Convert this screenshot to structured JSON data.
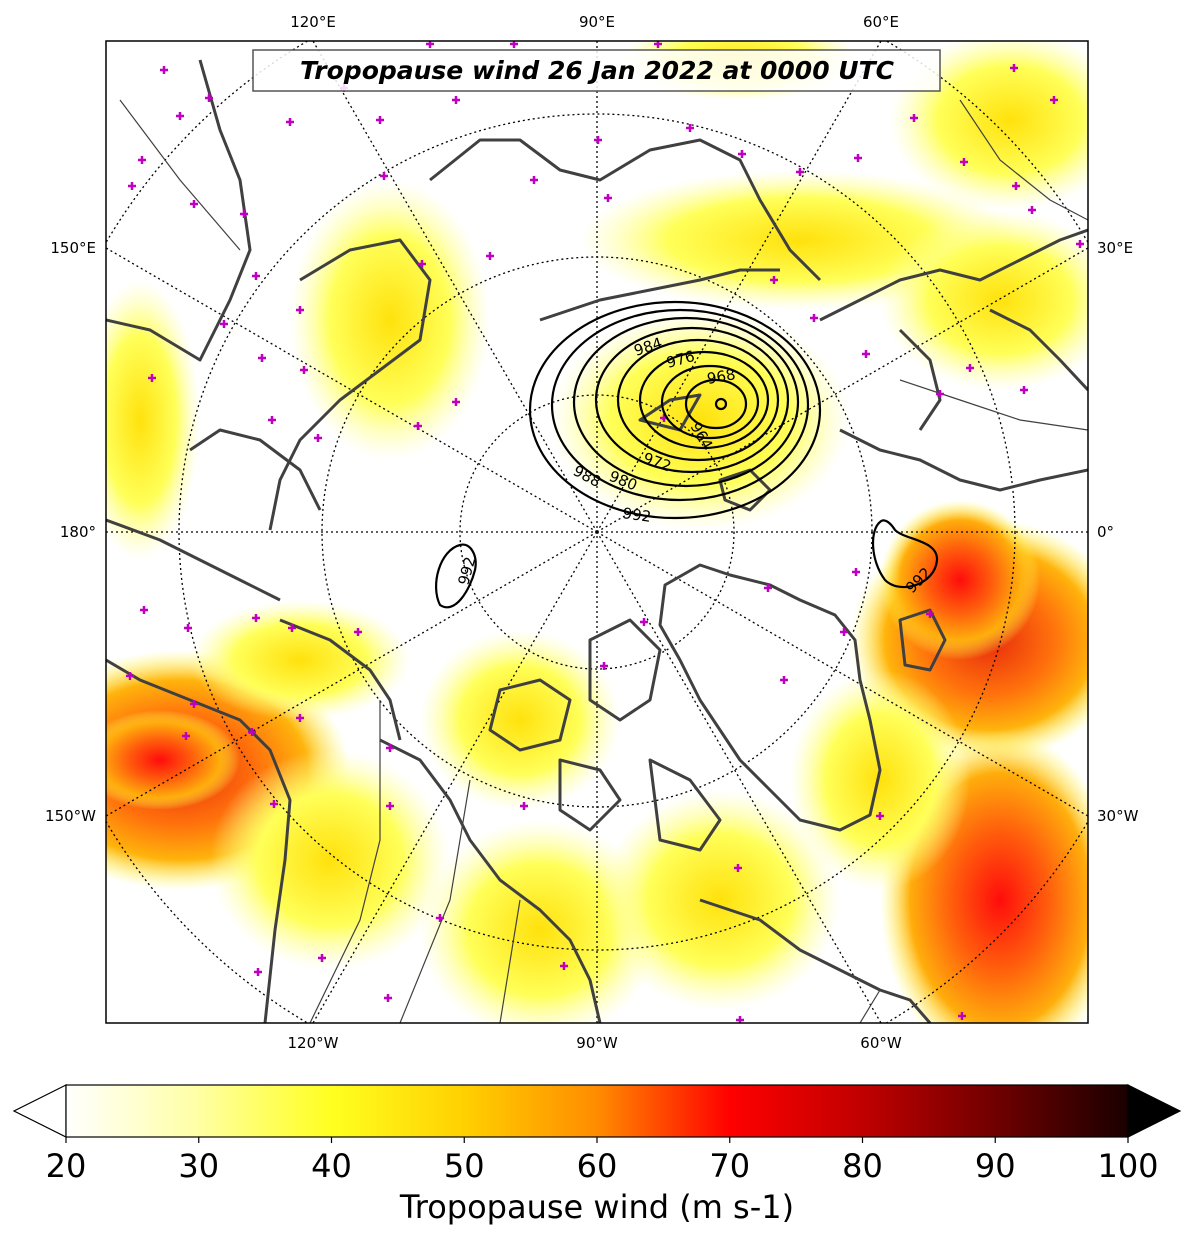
{
  "title": "Tropopause wind 26 Jan 2022 at 0000 UTC",
  "longitude_labels": {
    "top": [
      "120°E",
      "90°E",
      "60°E"
    ],
    "bottom": [
      "120°W",
      "90°W",
      "60°W"
    ],
    "left": [
      "150°E",
      "180°",
      "150°W"
    ],
    "right": [
      "30°E",
      "0°",
      "30°W"
    ]
  },
  "colorbar": {
    "label": "Tropopause wind (m s-1)",
    "ticks": [
      "20",
      "30",
      "40",
      "50",
      "60",
      "70",
      "80",
      "90",
      "100"
    ],
    "min": 20,
    "max": 100,
    "extend": "both",
    "colormap": "hot_r",
    "colors": [
      "#ffffff",
      "#ffff99",
      "#ffff00",
      "#ffd000",
      "#ff8c00",
      "#ff0000",
      "#c00000",
      "#700000",
      "#1a0000"
    ]
  },
  "pressure_contours": {
    "unit": "hPa",
    "labels": [
      "984",
      "976",
      "968",
      "964",
      "972",
      "980",
      "988",
      "992",
      "992",
      "992"
    ],
    "color": "#000000"
  },
  "station_marker_color": "#c000c0",
  "coastline_color": "#404040"
}
